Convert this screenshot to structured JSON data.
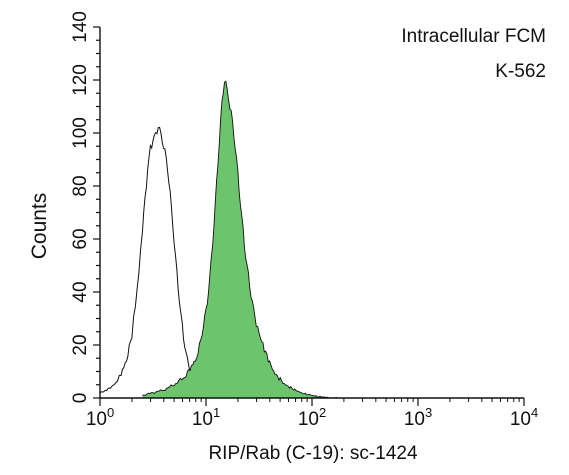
{
  "chart_data": {
    "type": "area",
    "title": "",
    "annotations": [
      "Intracellular FCM",
      "K-562"
    ],
    "xlabel": "RIP/Rab (C-19): sc-1424",
    "ylabel": "Counts",
    "x_scale": "log",
    "xlim": [
      1,
      10000
    ],
    "ylim": [
      0,
      140
    ],
    "x_ticks": [
      {
        "value": 1,
        "base": "10",
        "exp": "0"
      },
      {
        "value": 10,
        "base": "10",
        "exp": "1"
      },
      {
        "value": 100,
        "base": "10",
        "exp": "2"
      },
      {
        "value": 1000,
        "base": "10",
        "exp": "3"
      },
      {
        "value": 10000,
        "base": "10",
        "exp": "4"
      }
    ],
    "y_ticks": [
      "0",
      "20",
      "40",
      "60",
      "80",
      "100",
      "120",
      "140"
    ],
    "grid": false,
    "colors": {
      "filled": "#6cc46c",
      "outline": "#111111"
    },
    "series": [
      {
        "style": "outline",
        "x": [
          1.0,
          1.12,
          1.26,
          1.41,
          1.58,
          1.78,
          2.0,
          2.24,
          2.51,
          2.66,
          2.82,
          2.99,
          3.16,
          3.35,
          3.55,
          3.76,
          3.98,
          4.22,
          4.47,
          4.73,
          5.01,
          5.31,
          5.62,
          5.96,
          6.31,
          6.68,
          7.08,
          7.5,
          7.94,
          8.41,
          8.91,
          9.44,
          10.0,
          10.59,
          11.22,
          11.89,
          12.59,
          14.13,
          15.85,
          17.78,
          19.95,
          22.39,
          25.12,
          28.18,
          31.62,
          39.81,
          50.12
        ],
        "y": [
          2,
          3,
          4,
          6,
          9,
          14,
          23,
          40,
          62,
          74,
          86,
          94,
          98,
          100,
          104,
          100,
          96,
          90,
          82,
          70,
          58,
          46,
          36,
          27,
          20,
          15,
          11,
          9,
          8,
          6,
          5,
          4,
          3,
          2,
          2,
          1,
          1,
          1,
          1,
          0,
          0,
          0,
          0,
          0,
          0,
          0,
          0
        ]
      },
      {
        "style": "filled",
        "x": [
          2.51,
          3.98,
          5.01,
          6.31,
          7.08,
          7.94,
          8.41,
          8.91,
          9.44,
          10.0,
          10.59,
          11.22,
          11.89,
          12.59,
          13.34,
          14.13,
          14.96,
          15.85,
          16.79,
          17.78,
          18.84,
          19.95,
          21.13,
          22.39,
          23.71,
          25.12,
          26.61,
          28.18,
          29.85,
          31.62,
          35.48,
          39.81,
          44.67,
          50.12,
          56.23,
          63.1,
          70.79,
          79.43,
          89.13,
          100.0,
          112.2,
          125.89,
          158.49,
          199.53
        ],
        "y": [
          1,
          3,
          5,
          8,
          11,
          14,
          17,
          21,
          26,
          32,
          40,
          52,
          66,
          82,
          98,
          112,
          121,
          116,
          110,
          103,
          94,
          84,
          73,
          63,
          54,
          47,
          40,
          34,
          29,
          24,
          18,
          13,
          9,
          7,
          5,
          4,
          3,
          2,
          1.5,
          1,
          0.5,
          0.3,
          0,
          0
        ]
      }
    ]
  }
}
